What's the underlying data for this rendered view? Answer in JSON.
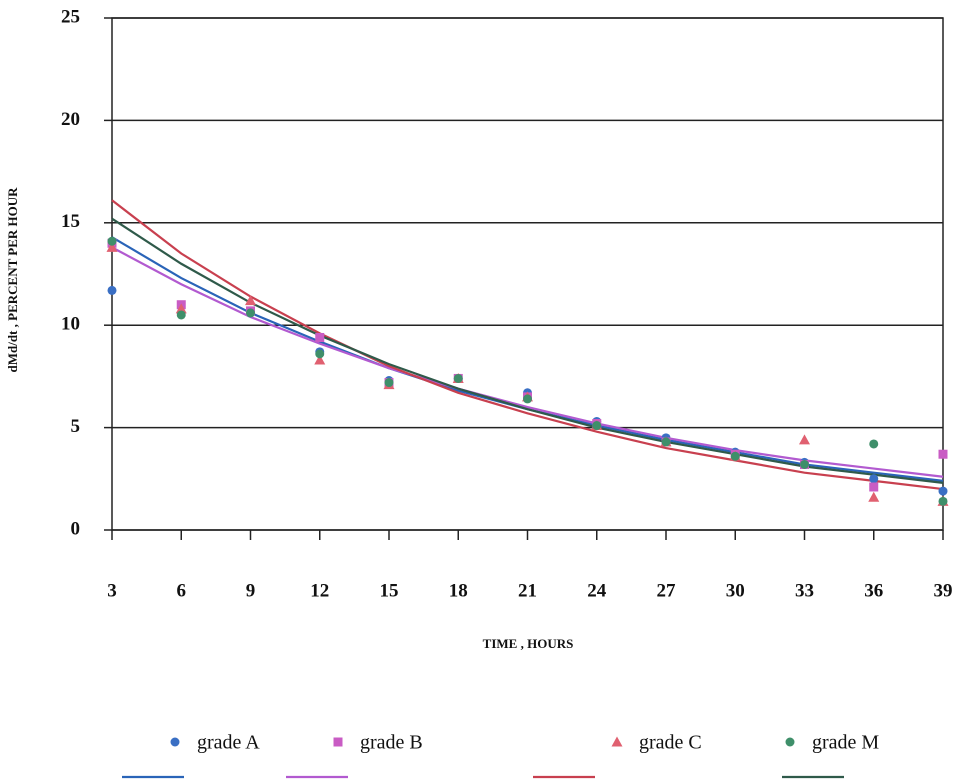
{
  "chart_data": {
    "type": "scatter",
    "x_label": "TIME , HOURS",
    "y_label": "dMd/dt , PERCENT PER HOUR",
    "x": [
      3,
      6,
      9,
      12,
      15,
      18,
      21,
      24,
      27,
      30,
      33,
      36,
      39
    ],
    "xlim": [
      3,
      39
    ],
    "xticks": [
      3,
      6,
      9,
      12,
      15,
      18,
      21,
      24,
      27,
      30,
      33,
      36,
      39
    ],
    "ylim": [
      0,
      25
    ],
    "yticks": [
      0,
      5,
      10,
      15,
      20,
      25
    ],
    "grid": true,
    "series": [
      {
        "name": "grade A",
        "color": "#3a6fc4",
        "marker": "circle",
        "values": [
          11.7,
          10.6,
          10.6,
          8.7,
          7.3,
          7.4,
          6.7,
          5.3,
          4.5,
          3.8,
          3.3,
          2.5,
          1.9
        ]
      },
      {
        "name": "grade B",
        "color": "#c95cc4",
        "marker": "square",
        "values": [
          14.0,
          11.0,
          10.7,
          9.4,
          7.2,
          7.4,
          6.5,
          5.2,
          4.3,
          3.7,
          3.2,
          2.1,
          3.7
        ]
      },
      {
        "name": "grade C",
        "color": "#e06070",
        "marker": "triangle",
        "values": [
          13.8,
          10.8,
          11.2,
          8.3,
          7.1,
          7.4,
          6.5,
          5.1,
          4.3,
          3.6,
          4.4,
          1.6,
          1.4
        ]
      },
      {
        "name": "grade M",
        "color": "#3f8f6a",
        "marker": "circle",
        "values": [
          14.1,
          10.5,
          10.6,
          8.6,
          7.2,
          7.4,
          6.4,
          5.1,
          4.3,
          3.6,
          3.2,
          4.2,
          1.4
        ]
      }
    ],
    "fits": [
      {
        "color": "#2a64b8",
        "values": [
          14.3,
          12.3,
          10.6,
          9.2,
          7.9,
          6.8,
          5.9,
          5.1,
          4.4,
          3.8,
          3.2,
          2.8,
          2.4
        ]
      },
      {
        "color": "#b25ad0",
        "values": [
          13.8,
          12.0,
          10.4,
          9.1,
          7.9,
          6.9,
          6.0,
          5.2,
          4.5,
          3.9,
          3.4,
          3.0,
          2.6
        ]
      },
      {
        "color": "#c8404f",
        "values": [
          16.1,
          13.5,
          11.4,
          9.6,
          8.0,
          6.7,
          5.7,
          4.8,
          4.0,
          3.4,
          2.8,
          2.4,
          2.0
        ]
      },
      {
        "color": "#2f5a4a",
        "values": [
          15.2,
          13.0,
          11.1,
          9.5,
          8.1,
          6.9,
          5.9,
          5.0,
          4.3,
          3.7,
          3.1,
          2.7,
          2.3
        ]
      }
    ]
  }
}
